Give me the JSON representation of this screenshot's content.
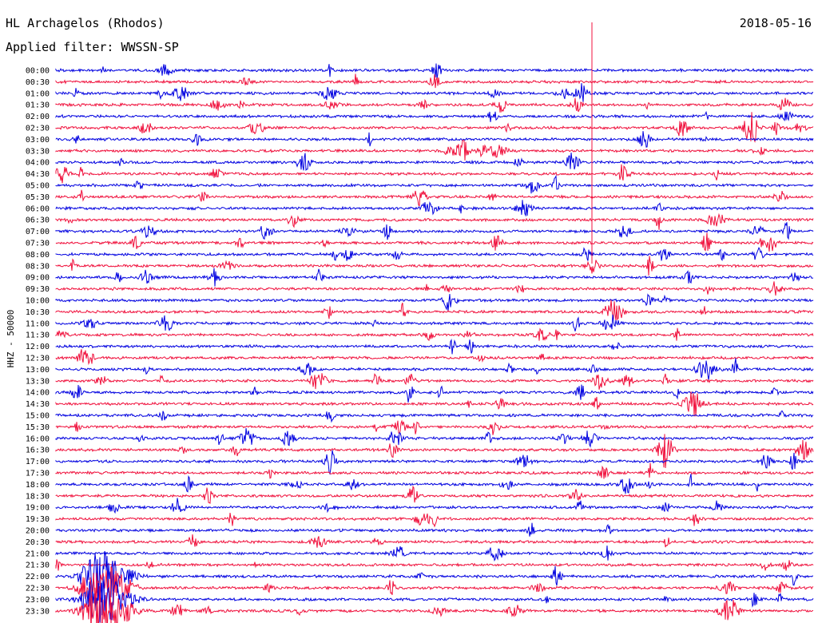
{
  "header": {
    "station": "HL Archagelos (Rhodos)",
    "filter": "Applied filter: WWSSN-SP",
    "date": "2018-05-16"
  },
  "chart_data": {
    "type": "line",
    "title": "HL Archagelos (Rhodos)",
    "ylabel": "HHZ - 50000",
    "series_colors": [
      "#0000e0",
      "#f0103c"
    ],
    "rows": [
      "00:00",
      "00:30",
      "01:00",
      "01:30",
      "02:00",
      "02:30",
      "03:00",
      "03:30",
      "04:00",
      "04:30",
      "05:00",
      "05:30",
      "06:00",
      "06:30",
      "07:00",
      "07:30",
      "08:00",
      "08:30",
      "09:00",
      "09:30",
      "10:00",
      "10:30",
      "11:00",
      "11:30",
      "12:00",
      "12:30",
      "13:00",
      "13:30",
      "14:00",
      "14:30",
      "15:00",
      "15:30",
      "16:00",
      "16:30",
      "17:00",
      "17:30",
      "18:00",
      "18:30",
      "19:00",
      "19:30",
      "20:00",
      "20:30",
      "21:00",
      "21:30",
      "22:00",
      "22:30",
      "23:00",
      "23:30"
    ]
  }
}
